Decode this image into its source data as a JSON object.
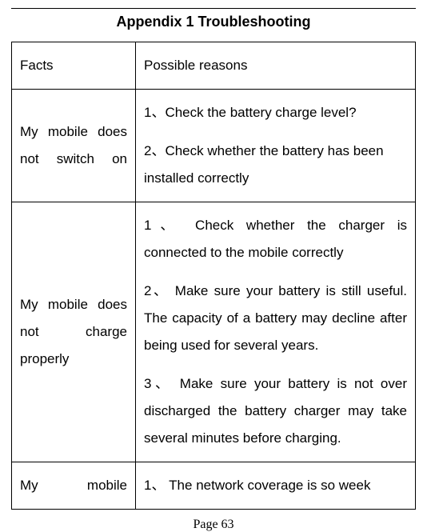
{
  "title": "Appendix 1 Troubleshooting",
  "pageLabel": "Page 63",
  "table": {
    "header": {
      "facts": "Facts",
      "reasons": "Possible reasons"
    },
    "rows": [
      {
        "fact": "My mobile does not switch on",
        "reasons": [
          "1、Check the battery charge level?",
          "2、Check whether the battery has been installed correctly"
        ]
      },
      {
        "fact": "My mobile does not charge properly",
        "reasons": [
          "1、 Check whether the charger is connected to the mobile correctly",
          "2、 Make sure your battery is still useful. The capacity of a battery may decline after being used for several years.",
          "3、  Make sure your battery is not over discharged the battery charger may take several minutes before charging."
        ]
      },
      {
        "fact": "My mobile",
        "reasons": [
          "1、 The network coverage is so week"
        ]
      }
    ]
  }
}
